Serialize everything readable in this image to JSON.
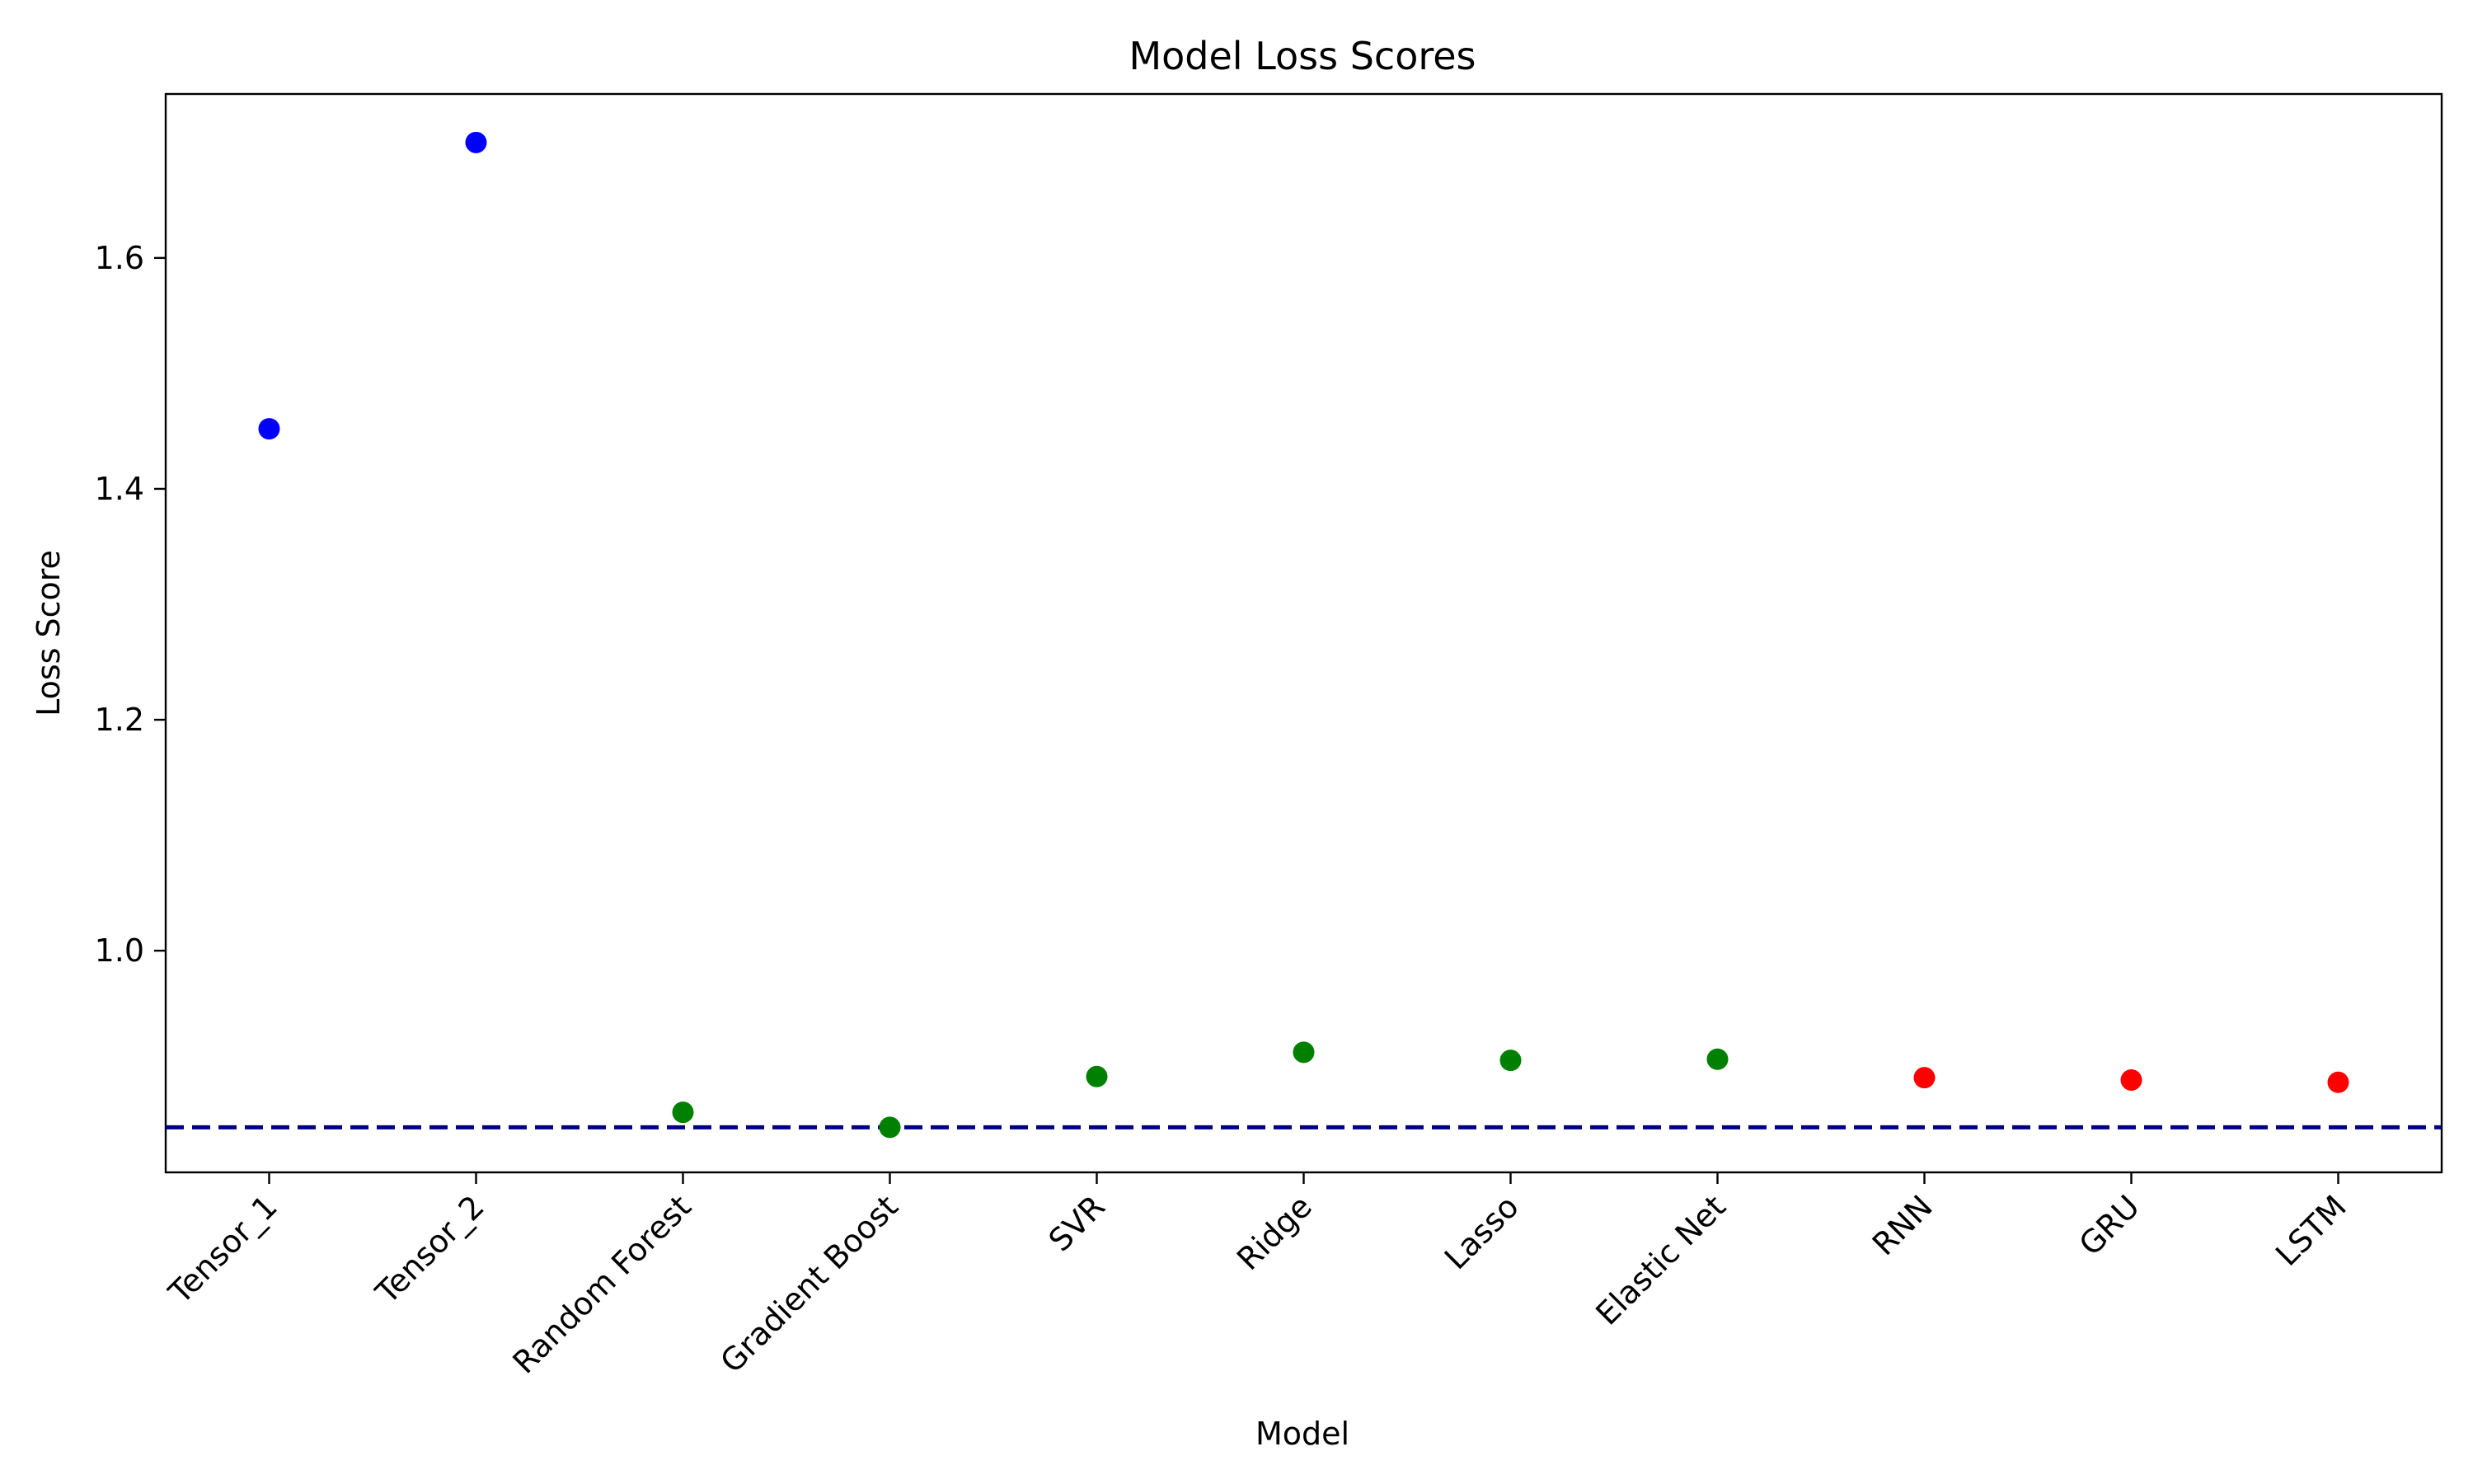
{
  "chart_data": {
    "type": "scatter",
    "title": "Model Loss Scores",
    "xlabel": "Model",
    "ylabel": "Loss Score",
    "categories": [
      "Tensor_1",
      "Tensor_2",
      "Random Forest",
      "Gradient Boost",
      "SVR",
      "Ridge",
      "Lasso",
      "Elastic Net",
      "RNN",
      "GRU",
      "LSTM"
    ],
    "values": [
      1.452,
      1.7,
      0.86,
      0.847,
      0.891,
      0.912,
      0.905,
      0.906,
      0.89,
      0.888,
      0.886
    ],
    "point_colors": [
      "#0000ff",
      "#0000ff",
      "#008000",
      "#008000",
      "#008000",
      "#008000",
      "#008000",
      "#008000",
      "#ff0000",
      "#ff0000",
      "#ff0000"
    ],
    "yticks": [
      1.0,
      1.2,
      1.4,
      1.6
    ],
    "ytick_labels": [
      "1.0",
      "1.2",
      "1.4",
      "1.6"
    ],
    "ylim": [
      0.808,
      1.742
    ],
    "reference_line": {
      "value": 0.847,
      "color": "#000080",
      "style": "dashed"
    },
    "grid": false,
    "xtick_rotation": 45
  }
}
